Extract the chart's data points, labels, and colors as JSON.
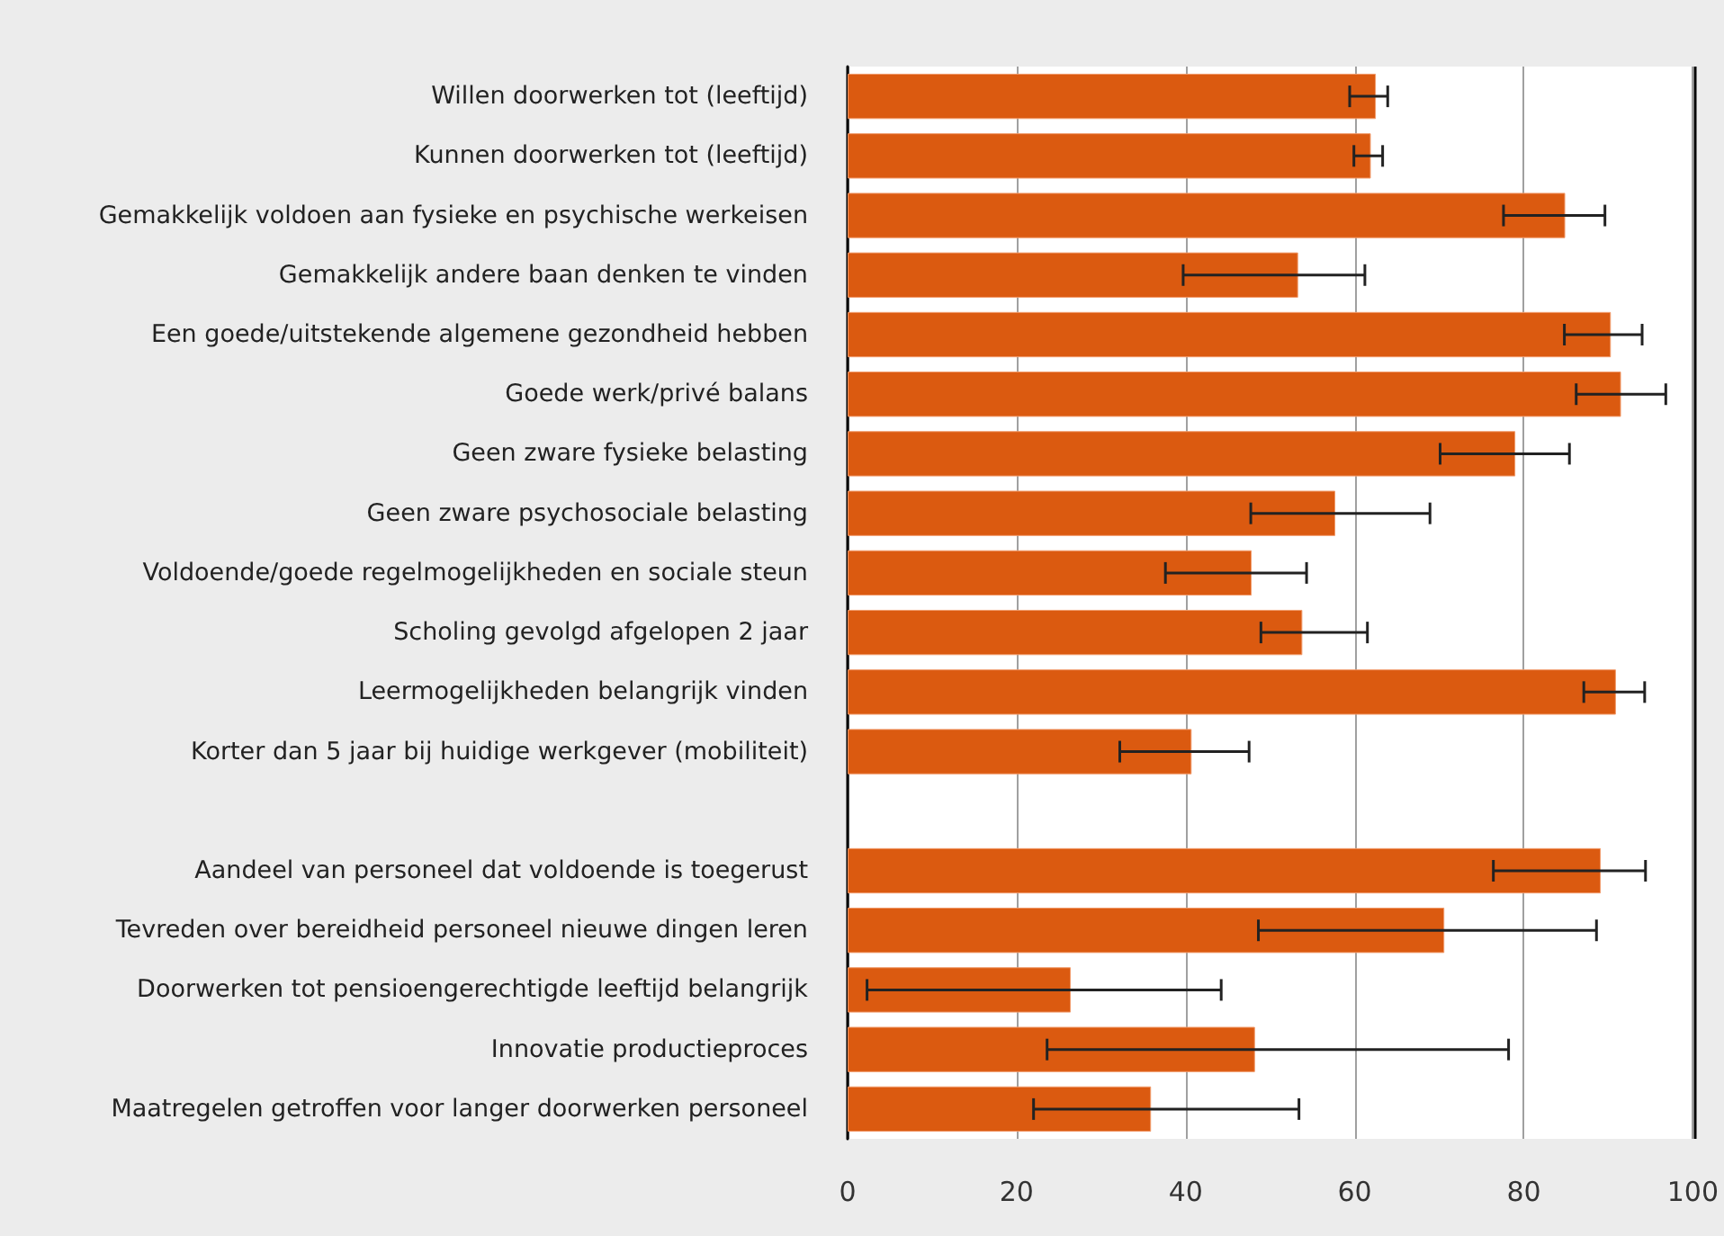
{
  "chart_data": {
    "type": "bar",
    "orientation": "horizontal",
    "categories": [
      "Willen doorwerken tot (leeftijd)",
      "Kunnen doorwerken tot (leeftijd)",
      "Gemakkelijk voldoen aan fysieke en psychische werkeisen",
      "Gemakkelijk andere baan denken te vinden",
      "Een goede/uitstekende algemene gezondheid hebben",
      "Goede werk/privé balans",
      "Geen zware fysieke belasting",
      "Geen zware psychosociale belasting",
      "Voldoende/goede regelmogelijkheden en sociale steun",
      "Scholing gevolgd afgelopen 2 jaar",
      "Leermogelijkheden belangrijk vinden",
      "Korter dan 5 jaar bij huidige werkgever (mobiliteit)",
      null,
      "Aandeel van personeel dat voldoende is toegerust",
      "Tevreden over bereidheid personeel nieuwe dingen leren",
      "Doorwerken tot pensioengerechtigde leeftijd belangrijk",
      "Innovatie productieproces",
      "Maatregelen getroffen voor langer doorwerken personeel"
    ],
    "values": [
      62.5,
      61.9,
      84.9,
      53.3,
      90.3,
      91.5,
      79.0,
      57.7,
      47.8,
      53.8,
      90.9,
      40.7,
      null,
      89.1,
      70.6,
      26.4,
      48.2,
      35.9
    ],
    "errors": [
      [
        59.4,
        63.9
      ],
      [
        59.9,
        63.3
      ],
      [
        77.6,
        89.6
      ],
      [
        39.7,
        61.2
      ],
      [
        84.8,
        94.0
      ],
      [
        86.2,
        96.8
      ],
      [
        70.1,
        85.4
      ],
      [
        47.7,
        68.9
      ],
      [
        37.6,
        54.3
      ],
      [
        48.9,
        61.5
      ],
      [
        87.1,
        94.3
      ],
      [
        32.2,
        47.5
      ],
      null,
      [
        76.4,
        94.4
      ],
      [
        48.6,
        88.6
      ],
      [
        2.3,
        44.2
      ],
      [
        23.6,
        78.2
      ],
      [
        22.0,
        53.4
      ]
    ],
    "color": "#db5a10",
    "xlim": [
      0,
      100
    ],
    "xticks": [
      0,
      20,
      40,
      60,
      80,
      100
    ],
    "grid": "x"
  }
}
